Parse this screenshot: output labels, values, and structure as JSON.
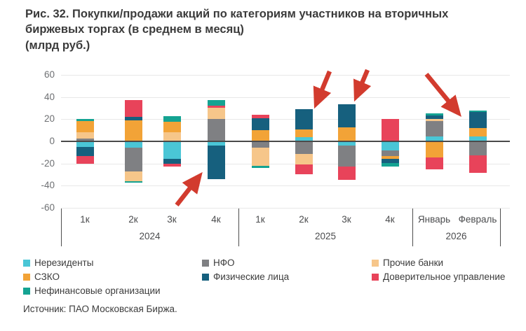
{
  "title_lines": [
    "Рис. 32. Покупки/продажи акций по категориям участников на вторичных",
    "биржевых торгах (в среднем в месяц)",
    "(млрд руб.)"
  ],
  "source": "Источник: ПАО Московская Биржа.",
  "chart_data": {
    "type": "bar",
    "stacked": true,
    "title": "Покупки/продажи акций по категориям участников на вторичных биржевых торгах (в среднем в месяц)",
    "ylabel": "млрд руб.",
    "ylim": [
      -60,
      60
    ],
    "y_ticks": [
      60,
      40,
      20,
      0,
      -20,
      -40,
      -60
    ],
    "grid": true,
    "series_colors": {
      "nonres": {
        "label": "Нерезиденты",
        "color": "#4ac6d6"
      },
      "nfo": {
        "label": "НФО",
        "color": "#7f8083"
      },
      "banks": {
        "label": "Прочие банки",
        "color": "#f6c68a"
      },
      "szko": {
        "label": "СЗКО",
        "color": "#f2a337"
      },
      "fiz": {
        "label": "Физические лица",
        "color": "#16607e"
      },
      "trust": {
        "label": "Доверительное управление",
        "color": "#e8435a"
      },
      "nonfin": {
        "label": "Нефинансовые организации",
        "color": "#14a392"
      }
    },
    "groups": [
      {
        "label": "2024",
        "bars": [
          {
            "label": "1к",
            "pos": [
              [
                "nfo",
                2.5
              ],
              [
                "banks",
                6
              ],
              [
                "szko",
                10
              ],
              [
                "nonfin",
                2
              ]
            ],
            "neg": [
              [
                "nonres",
                5
              ],
              [
                "fiz",
                8
              ],
              [
                "trust",
                7.5
              ]
            ]
          },
          {
            "label": "2к",
            "pos": [
              [
                "szko",
                19
              ],
              [
                "fiz",
                3
              ],
              [
                "trust",
                15.5
              ]
            ],
            "neg": [
              [
                "nonres",
                6
              ],
              [
                "nfo",
                21
              ],
              [
                "banks",
                9
              ],
              [
                "nonfin",
                1.5
              ]
            ]
          },
          {
            "label": "3к",
            "pos": [
              [
                "banks",
                8
              ],
              [
                "szko",
                9.5
              ],
              [
                "nonfin",
                5.5
              ]
            ],
            "neg": [
              [
                "nonres",
                15.5
              ],
              [
                "fiz",
                4.5
              ],
              [
                "trust",
                3
              ]
            ]
          },
          {
            "label": "4к",
            "pos": [
              [
                "nfo",
                20
              ],
              [
                "banks",
                10.5
              ],
              [
                "trust",
                1.5
              ],
              [
                "nonfin",
                5
              ]
            ],
            "neg": [
              [
                "nonres",
                4
              ],
              [
                "fiz",
                30
              ]
            ]
          }
        ]
      },
      {
        "label": "2025",
        "bars": [
          {
            "label": "1к",
            "pos": [
              [
                "szko",
                10
              ],
              [
                "fiz",
                11
              ],
              [
                "trust",
                3
              ]
            ],
            "neg": [
              [
                "nfo",
                6
              ],
              [
                "banks",
                16
              ],
              [
                "nonfin",
                2
              ]
            ]
          },
          {
            "label": "2к",
            "pos": [
              [
                "nonres",
                3.5
              ],
              [
                "szko",
                7.5
              ],
              [
                "fiz",
                18
              ]
            ],
            "neg": [
              [
                "nfo",
                11.5
              ],
              [
                "banks",
                9.5
              ],
              [
                "trust",
                8.5
              ]
            ]
          },
          {
            "label": "3к",
            "pos": [
              [
                "szko",
                12.5
              ],
              [
                "fiz",
                21
              ]
            ],
            "neg": [
              [
                "nonres",
                4
              ],
              [
                "nfo",
                19
              ],
              [
                "trust",
                11.5
              ]
            ]
          },
          {
            "label": "4к",
            "pos": [
              [
                "trust",
                20
              ]
            ],
            "neg": [
              [
                "nonres",
                8
              ],
              [
                "nfo",
                5
              ],
              [
                "szko",
                3
              ],
              [
                "fiz",
                3.5
              ],
              [
                "nonfin",
                3.5
              ]
            ]
          }
        ]
      },
      {
        "label": "2026",
        "bars": [
          {
            "label": "Январь",
            "pos": [
              [
                "nonres",
                4.5
              ],
              [
                "nfo",
                14
              ],
              [
                "banks",
                1.5
              ],
              [
                "fiz",
                3.5
              ],
              [
                "nonfin",
                1.5
              ]
            ],
            "neg": [
              [
                "szko",
                14.5
              ],
              [
                "trust",
                11
              ]
            ]
          },
          {
            "label": "Февраль",
            "pos": [
              [
                "nonres",
                4.5
              ],
              [
                "szko",
                7.5
              ],
              [
                "fiz",
                14.5
              ],
              [
                "nonfin",
                1.5
              ]
            ],
            "neg": [
              [
                "nfo",
                12.5
              ],
              [
                "trust",
                16
              ]
            ]
          }
        ]
      }
    ],
    "legend_columns": [
      [
        "nonres",
        "szko",
        "nonfin"
      ],
      [
        "nfo",
        "fiz"
      ],
      [
        "banks",
        "trust"
      ]
    ],
    "annotations": {
      "arrow_color": "#d23b2e",
      "arrows": [
        {
          "target": "4к 2024 — продажи физических лиц"
        },
        {
          "target": "2к 2025 — покупки физических лиц"
        },
        {
          "target": "3к 2025 — покупки физических лиц"
        },
        {
          "target": "Февраль 2026 — покупки физических лиц"
        }
      ]
    }
  }
}
